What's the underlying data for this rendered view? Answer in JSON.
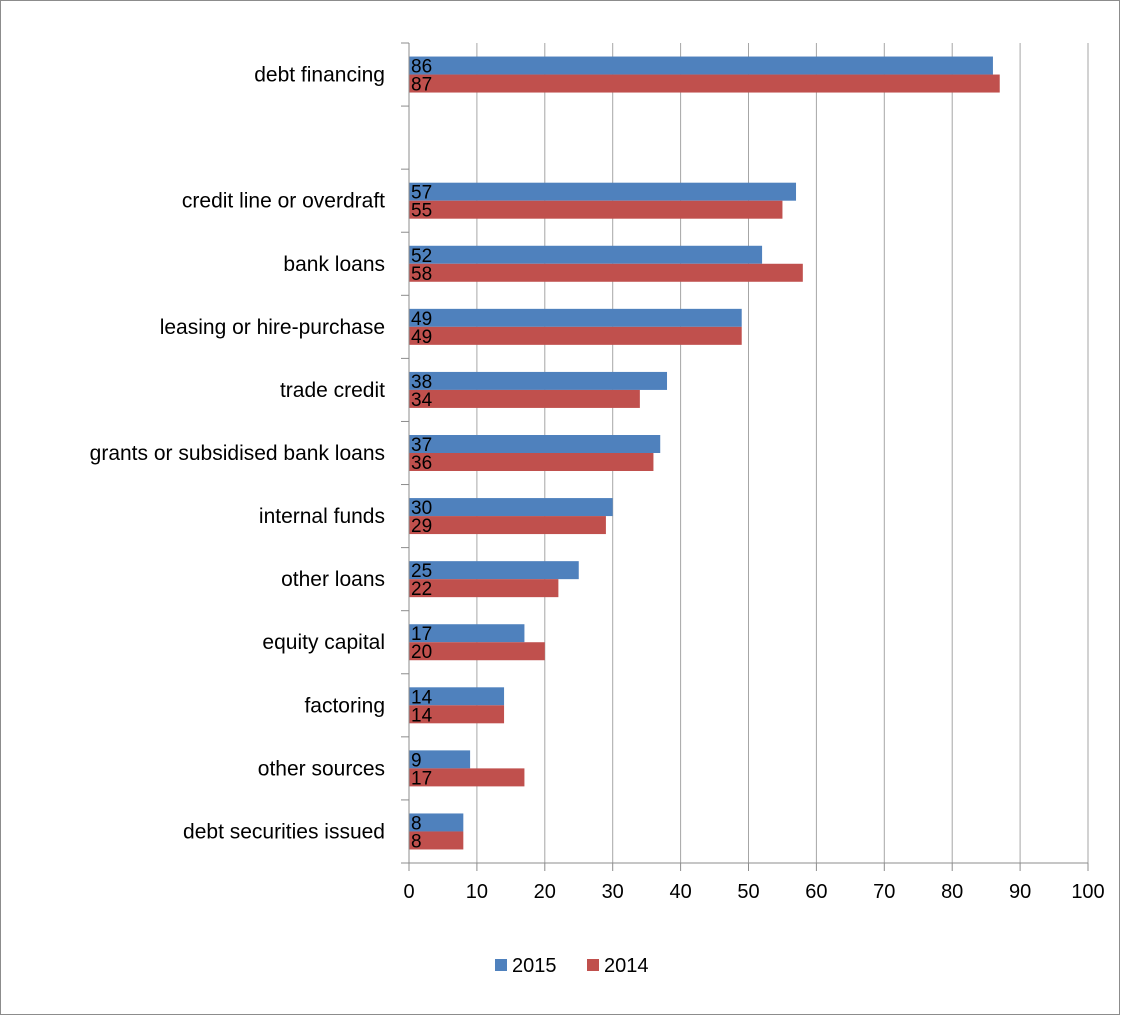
{
  "chart_data": {
    "type": "bar",
    "orientation": "horizontal",
    "categories": [
      "debt financing",
      "",
      "credit line or overdraft",
      "bank loans",
      "leasing or hire-purchase",
      "trade credit",
      "grants or subsidised bank loans",
      "internal funds",
      "other loans",
      "equity capital",
      "factoring",
      "other sources",
      "debt securities issued"
    ],
    "series": [
      {
        "name": "2015",
        "color": "#4f81bd",
        "values": [
          86,
          null,
          57,
          52,
          49,
          38,
          37,
          30,
          25,
          17,
          14,
          9,
          8
        ]
      },
      {
        "name": "2014",
        "color": "#c0504d",
        "values": [
          87,
          null,
          55,
          58,
          49,
          34,
          36,
          29,
          22,
          20,
          14,
          17,
          8
        ]
      }
    ],
    "x_ticks": [
      0,
      10,
      20,
      30,
      40,
      50,
      60,
      70,
      80,
      90,
      100
    ],
    "xlim": [
      0,
      100
    ],
    "grid": "vertical",
    "legend_position": "bottom",
    "data_labels": true
  }
}
